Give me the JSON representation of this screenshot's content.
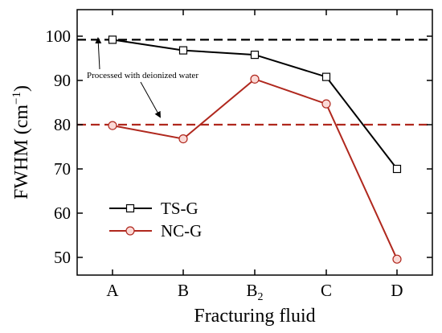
{
  "chart_data": {
    "type": "line",
    "categories": [
      "A",
      "B",
      "B2",
      "C",
      "D"
    ],
    "category_labels": [
      {
        "base": "A",
        "sub": ""
      },
      {
        "base": "B",
        "sub": ""
      },
      {
        "base": "B",
        "sub": "2"
      },
      {
        "base": "C",
        "sub": ""
      },
      {
        "base": "D",
        "sub": ""
      }
    ],
    "series": [
      {
        "name": "TS-G",
        "values": [
          99.2,
          96.8,
          95.8,
          90.8,
          70.0
        ],
        "color": "#000000",
        "marker": "square"
      },
      {
        "name": "NC-G",
        "values": [
          79.8,
          76.8,
          90.3,
          84.7,
          49.6
        ],
        "color": "#b0281e",
        "marker": "circle"
      }
    ],
    "reference_lines": [
      {
        "y": 99.2,
        "color": "#000000",
        "style": "dashed"
      },
      {
        "y": 80.0,
        "color": "#b0281e",
        "style": "dashed"
      }
    ],
    "ylabel_main": "FWHM (cm",
    "ylabel_sup": "−1",
    "ylabel_close": ")",
    "xlabel": "Fracturing fluid",
    "ylim": [
      46,
      106
    ],
    "yticks": [
      50,
      60,
      70,
      80,
      90,
      100
    ],
    "annotation": "Processed with deionized water",
    "legend_position": "bottom-left",
    "grid": false
  }
}
